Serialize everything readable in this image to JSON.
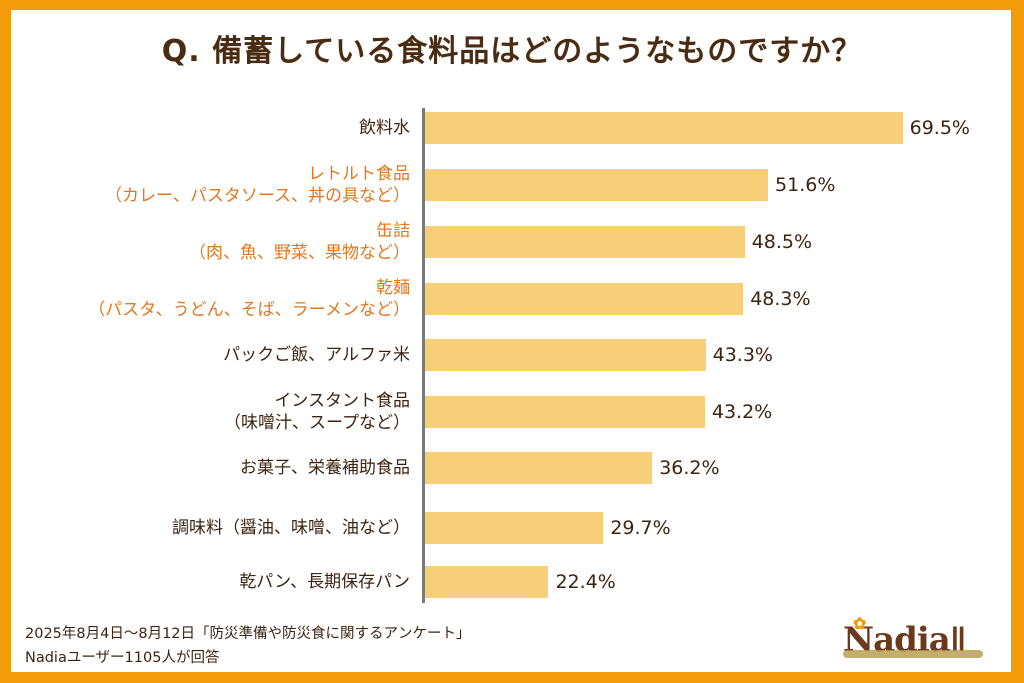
{
  "chart_data": {
    "type": "bar",
    "orientation": "horizontal",
    "title": "Q. 備蓄している食料品はどのようなものですか？",
    "xlabel": "",
    "ylabel": "",
    "categories": [
      {
        "line1": "飲料水",
        "line2": "",
        "highlight": false
      },
      {
        "line1": "レトルト食品",
        "line2": "（カレー、パスタソース、丼の具など）",
        "highlight": true
      },
      {
        "line1": "缶詰",
        "line2": "（肉、魚、野菜、果物など）",
        "highlight": true
      },
      {
        "line1": "乾麺",
        "line2": "（パスタ、うどん、そば、ラーメンなど）",
        "highlight": true
      },
      {
        "line1": "パックご飯、アルファ米",
        "line2": "",
        "highlight": false
      },
      {
        "line1": "インスタント食品",
        "line2": "（味噌汁、スープなど）",
        "highlight": false
      },
      {
        "line1": "お菓子、栄養補助食品",
        "line2": "",
        "highlight": false
      },
      {
        "line1": "調味料（醤油、味噌、油など）",
        "line2": "",
        "highlight": false
      },
      {
        "line1": "乾パン、長期保存パン",
        "line2": "",
        "highlight": false
      }
    ],
    "values": [
      69.5,
      51.6,
      48.5,
      48.3,
      43.3,
      43.2,
      36.2,
      29.7,
      22.4
    ],
    "value_labels": [
      "69.5%",
      "51.6%",
      "48.5%",
      "48.3%",
      "43.3%",
      "43.2%",
      "36.2%",
      "29.7%",
      "22.4%"
    ],
    "unit": "%",
    "grid": false,
    "legend": "none",
    "colors": {
      "bar": "#F8CE78",
      "highlight_label": "#E3771E",
      "text": "#3D2410",
      "frame": "#F39C0A"
    }
  },
  "footer": {
    "line1": "2025年8月4日〜8月12日「防災準備や防災食に関するアンケート」",
    "line2": "Nadiaユーザー1105人が回答"
  },
  "logo": {
    "text": "Nadia",
    "icon": "fork-spoon-icon"
  }
}
